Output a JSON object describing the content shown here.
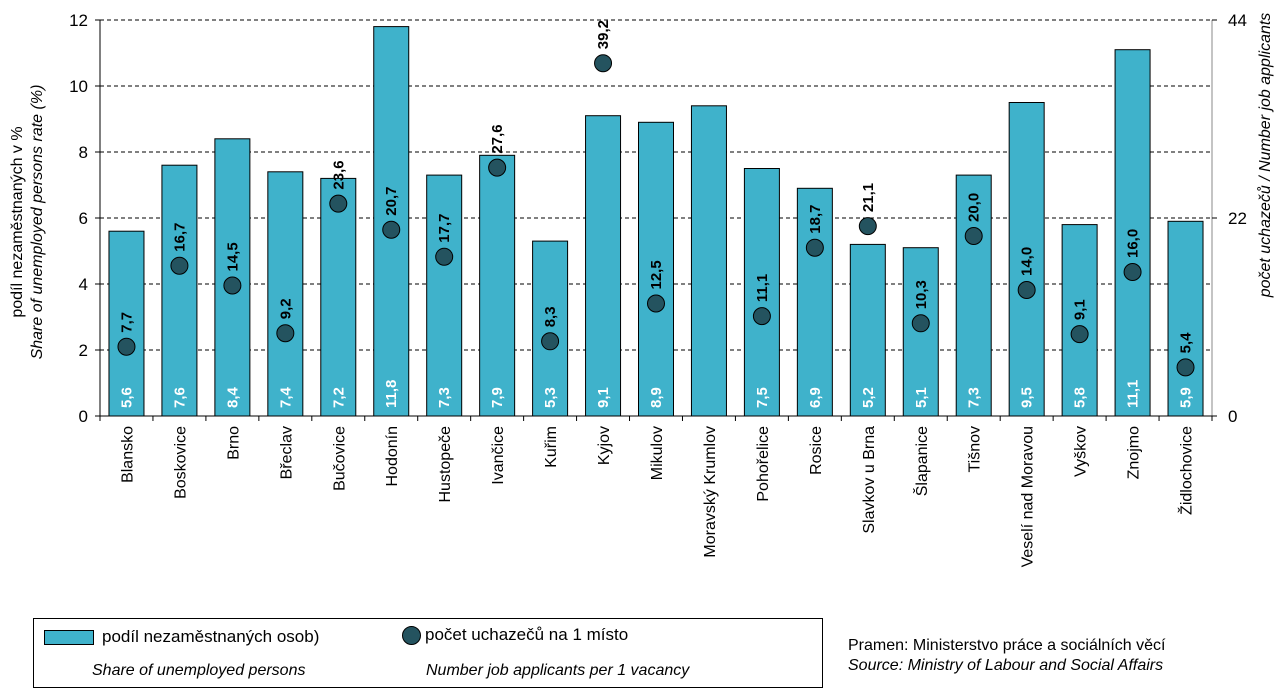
{
  "chart_data": {
    "type": "bar",
    "categories": [
      "Blansko",
      "Boskovice",
      "Brno",
      "Břeclav",
      "Bučovice",
      "Hodonín",
      "Hustopeče",
      "Ivančice",
      "Kuřim",
      "Kyjov",
      "Mikulov",
      "Moravský Krumlov",
      "Pohořelice",
      "Rosice",
      "Slavkov u Brna",
      "Šlapanice",
      "Tišnov",
      "Veselí nad Moravou",
      "Vyškov",
      "Znojmo",
      "Židlochovice"
    ],
    "series": [
      {
        "name": "podíl nezaměstnaných osob)",
        "axis": "left",
        "values": [
          5.6,
          7.6,
          8.4,
          7.4,
          7.2,
          11.8,
          7.3,
          7.9,
          5.3,
          9.1,
          8.9,
          9.4,
          7.5,
          6.9,
          5.2,
          5.1,
          7.3,
          9.5,
          5.8,
          11.1,
          5.9
        ],
        "labels": [
          "5,6",
          "7,6",
          "8,4",
          "7,4",
          "7,2",
          "11,8",
          "7,3",
          "7,9",
          "5,3",
          "9,1",
          "8,9",
          "",
          "7,5",
          "6,9",
          "5,2",
          "5,1",
          "7,3",
          "9,5",
          "5,8",
          "11,1",
          "5,9"
        ]
      },
      {
        "name": "počet uchazečů na 1 místo",
        "axis": "right",
        "values": [
          7.7,
          16.7,
          14.5,
          9.2,
          23.6,
          20.7,
          17.7,
          27.6,
          8.3,
          39.2,
          12.5,
          null,
          11.1,
          18.7,
          21.1,
          10.3,
          20.0,
          14.0,
          9.1,
          16.0,
          5.4
        ],
        "labels": [
          "7,7",
          "16,7",
          "14,5",
          "9,2",
          "23,6",
          "20,7",
          "17,7",
          "27,6",
          "8,3",
          "39,2",
          "12,5",
          "",
          "11,1",
          "18,7",
          "21,1",
          "10,3",
          "20,0",
          "14,0",
          "9,1",
          "16,0",
          "5,4"
        ]
      }
    ],
    "y_left": {
      "ylim": [
        0,
        12
      ],
      "ticks": [
        "0",
        "2",
        "4",
        "6",
        "8",
        "10",
        "12"
      ],
      "label": "podíl nezaměstnaných v %",
      "label_en": "Share of unemployed persons rate (%)"
    },
    "y_right": {
      "ylim": [
        0,
        44
      ],
      "ticks": [
        "0",
        "22",
        "44"
      ],
      "label": "počet uchazečů / Number job applicants"
    },
    "grid": "horizontal dashed",
    "colors": {
      "bar": "#3fb2cb",
      "dot": "#24535f"
    }
  },
  "legend": {
    "bar_label": "podíl nezaměstnaných osob)",
    "bar_label_en": "Share of unemployed persons",
    "dot_label": "počet uchazečů na 1 místo",
    "dot_label_en": "Number job applicants per 1 vacancy"
  },
  "source": {
    "cz": "Pramen: Ministerstvo práce a sociálních věcí",
    "en": "Source: Ministry of Labour and Social Affairs"
  }
}
